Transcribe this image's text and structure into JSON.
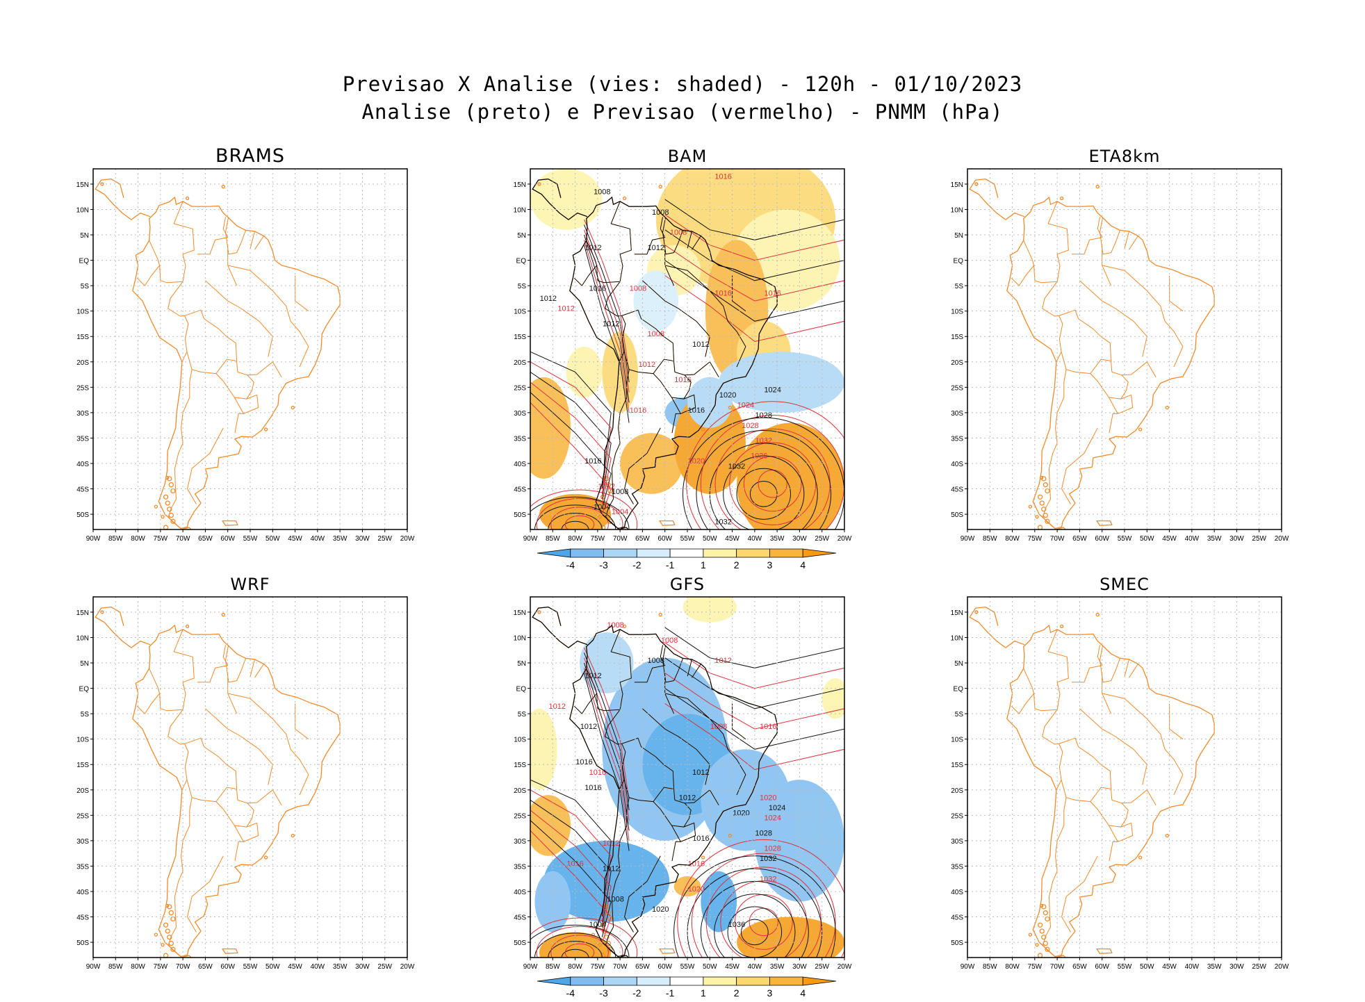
{
  "title": {
    "line1": "Previsao X Analise (vies: shaded) - 120h - 01/10/2023",
    "line2": "Analise (preto) e Previsao (vermelho) - PNMM (hPa)"
  },
  "colors": {
    "coast": "#f08a2a",
    "analysis_contour": "#111111",
    "forecast_contour": "#e0303a",
    "grid": "#bbbbbb"
  },
  "chart_data": {
    "type": "map",
    "variable": "PNMM (hPa)",
    "bias_shading": "vies: shaded",
    "lon_ticks": [
      "90W",
      "85W",
      "80W",
      "75W",
      "70W",
      "65W",
      "60W",
      "55W",
      "50W",
      "45W",
      "40W",
      "35W",
      "30W",
      "25W",
      "20W"
    ],
    "lat_ticks": [
      "15N",
      "10N",
      "5N",
      "EQ",
      "5S",
      "10S",
      "15S",
      "20S",
      "25S",
      "30S",
      "35S",
      "40S",
      "45S",
      "50S"
    ],
    "lon_range": [
      -90,
      -20
    ],
    "lat_range": [
      -53,
      18
    ],
    "colorbar": {
      "labels": [
        "-4",
        "-3",
        "-2",
        "-1",
        "1",
        "2",
        "3",
        "4"
      ],
      "colors": [
        "#4da6e8",
        "#7fbdf0",
        "#acd6f5",
        "#d6eefb",
        "#ffffff",
        "#fdf3a6",
        "#fcd76b",
        "#f9b43c",
        "#f59a12"
      ]
    },
    "panels": [
      {
        "model": "BRAMS",
        "has_data": false
      },
      {
        "model": "BAM",
        "has_data": true,
        "analysis_labels": [
          {
            "text": "1008",
            "lon": -74,
            "lat": 13
          },
          {
            "text": "1008",
            "lon": -61,
            "lat": 9
          },
          {
            "text": "1012",
            "lon": -76,
            "lat": 2
          },
          {
            "text": "1016",
            "lon": -75,
            "lat": -6
          },
          {
            "text": "1012",
            "lon": -86,
            "lat": -8
          },
          {
            "text": "1012",
            "lon": -72,
            "lat": -13
          },
          {
            "text": "1012",
            "lon": -52,
            "lat": -17
          },
          {
            "text": "1016",
            "lon": -53,
            "lat": -30
          },
          {
            "text": "1020",
            "lon": -46,
            "lat": -27
          },
          {
            "text": "1024",
            "lon": -36,
            "lat": -26
          },
          {
            "text": "1028",
            "lon": -38,
            "lat": -31
          },
          {
            "text": "1032",
            "lon": -44,
            "lat": -41
          },
          {
            "text": "1016",
            "lon": -76,
            "lat": -40
          },
          {
            "text": "1008",
            "lon": -70,
            "lat": -46
          },
          {
            "text": "1004",
            "lon": -74,
            "lat": -49
          },
          {
            "text": "1032",
            "lon": -47,
            "lat": -52
          },
          {
            "text": "1012",
            "lon": -62,
            "lat": 2
          }
        ],
        "forecast_labels": [
          {
            "text": "1016",
            "lon": -47,
            "lat": 16
          },
          {
            "text": "1008",
            "lon": -57,
            "lat": 5
          },
          {
            "text": "1012",
            "lon": -82,
            "lat": -10
          },
          {
            "text": "1008",
            "lon": -66,
            "lat": -6
          },
          {
            "text": "1008",
            "lon": -62,
            "lat": -15
          },
          {
            "text": "1012",
            "lon": -64,
            "lat": -21
          },
          {
            "text": "1016",
            "lon": -66,
            "lat": -30
          },
          {
            "text": "1020",
            "lon": -53,
            "lat": -40
          },
          {
            "text": "1024",
            "lon": -42,
            "lat": -29
          },
          {
            "text": "1028",
            "lon": -41,
            "lat": -33
          },
          {
            "text": "1032",
            "lon": -38,
            "lat": -36
          },
          {
            "text": "1036",
            "lon": -39,
            "lat": -39
          },
          {
            "text": "1016",
            "lon": -47,
            "lat": -7
          },
          {
            "text": "1016",
            "lon": -36,
            "lat": -7
          },
          {
            "text": "1016",
            "lon": -56,
            "lat": -24
          },
          {
            "text": "1012",
            "lon": -73,
            "lat": -45
          },
          {
            "text": "1004",
            "lon": -70,
            "lat": -50
          }
        ]
      },
      {
        "model": "ETA8km",
        "has_data": false
      },
      {
        "model": "WRF",
        "has_data": false
      },
      {
        "model": "GFS",
        "has_data": true,
        "analysis_labels": [
          {
            "text": "1012",
            "lon": -76,
            "lat": 2
          },
          {
            "text": "1008",
            "lon": -62,
            "lat": 5
          },
          {
            "text": "1012",
            "lon": -77,
            "lat": -8
          },
          {
            "text": "1016",
            "lon": -78,
            "lat": -15
          },
          {
            "text": "1012",
            "lon": -52,
            "lat": -17
          },
          {
            "text": "1012",
            "lon": -55,
            "lat": -22
          },
          {
            "text": "1020",
            "lon": -43,
            "lat": -25
          },
          {
            "text": "1024",
            "lon": -35,
            "lat": -24
          },
          {
            "text": "1028",
            "lon": -38,
            "lat": -29
          },
          {
            "text": "1032",
            "lon": -37,
            "lat": -34
          },
          {
            "text": "1036",
            "lon": -44,
            "lat": -47
          },
          {
            "text": "1016",
            "lon": -52,
            "lat": -30
          },
          {
            "text": "1012",
            "lon": -72,
            "lat": -36
          },
          {
            "text": "1008",
            "lon": -71,
            "lat": -42
          },
          {
            "text": "1020",
            "lon": -61,
            "lat": -44
          },
          {
            "text": "1016",
            "lon": -76,
            "lat": -20
          },
          {
            "text": "1004",
            "lon": -75,
            "lat": -47
          }
        ],
        "forecast_labels": [
          {
            "text": "1008",
            "lon": -71,
            "lat": 12
          },
          {
            "text": "1008",
            "lon": -59,
            "lat": 9
          },
          {
            "text": "1012",
            "lon": -47,
            "lat": 5
          },
          {
            "text": "1012",
            "lon": -84,
            "lat": -4
          },
          {
            "text": "1008",
            "lon": -48,
            "lat": -8
          },
          {
            "text": "1016",
            "lon": -75,
            "lat": -17
          },
          {
            "text": "1020",
            "lon": -37,
            "lat": -22
          },
          {
            "text": "1024",
            "lon": -36,
            "lat": -26
          },
          {
            "text": "1028",
            "lon": -36,
            "lat": -32
          },
          {
            "text": "1032",
            "lon": -37,
            "lat": -38
          },
          {
            "text": "1016",
            "lon": -53,
            "lat": -35
          },
          {
            "text": "1020",
            "lon": -53,
            "lat": -40
          },
          {
            "text": "1016",
            "lon": -80,
            "lat": -35
          },
          {
            "text": "1016",
            "lon": -37,
            "lat": -8
          },
          {
            "text": "1012",
            "lon": -72,
            "lat": -31
          }
        ]
      },
      {
        "model": "SMEC",
        "has_data": false
      }
    ]
  }
}
